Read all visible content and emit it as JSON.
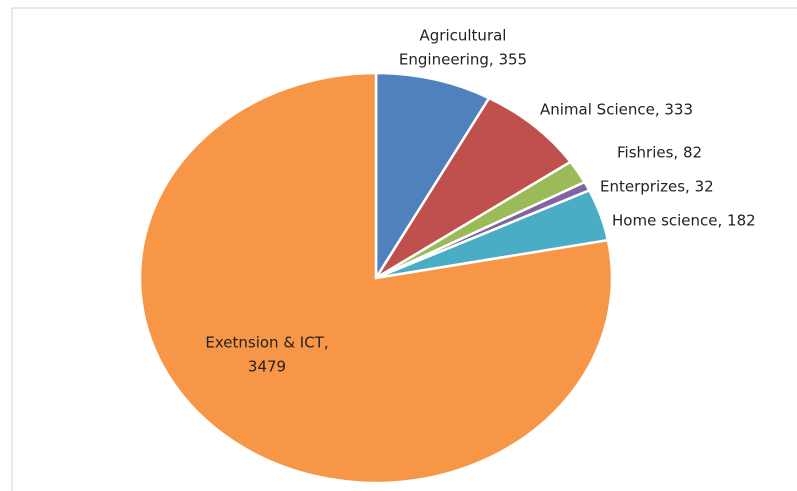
{
  "chart_data": {
    "type": "pie",
    "labels": [
      [
        "Agricultural",
        "Engineering, 355"
      ],
      [
        "Animal Science, 333"
      ],
      [
        "Fishries, 82"
      ],
      [
        "Enterprizes, 32"
      ],
      [
        "Home science, 182"
      ],
      [
        "Exetnsion & ICT,",
        "3479"
      ]
    ],
    "values": [
      355,
      333,
      82,
      32,
      182,
      3479
    ],
    "colors": [
      "#4f81bd",
      "#c0504d",
      "#9bbb59",
      "#8064a2",
      "#4bacc6",
      "#f79646"
    ]
  }
}
